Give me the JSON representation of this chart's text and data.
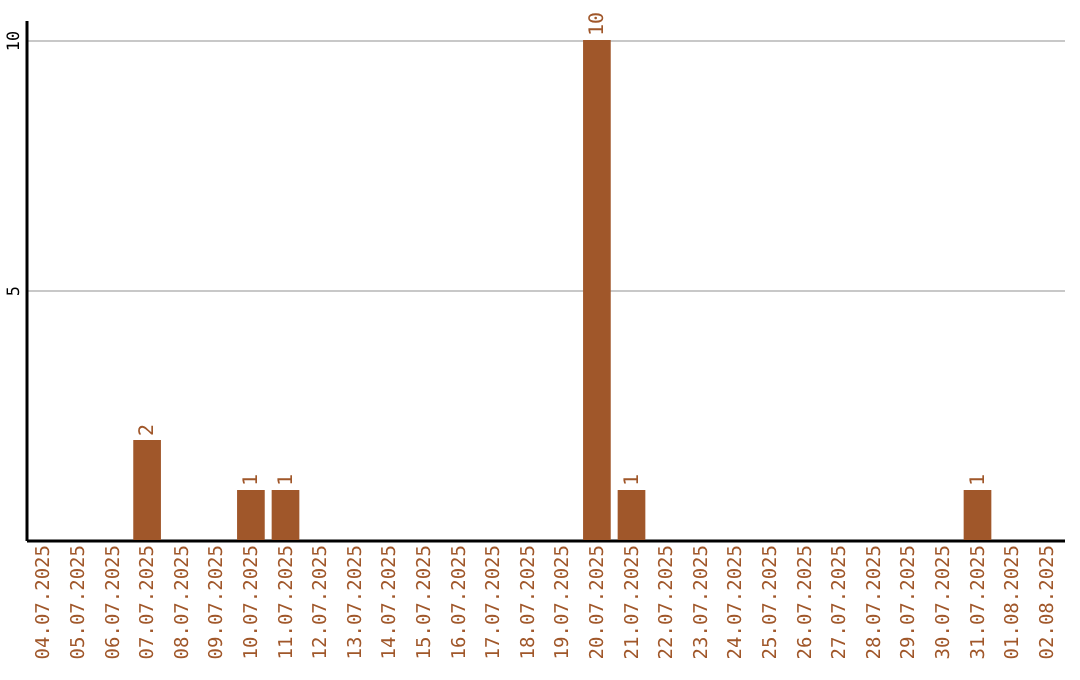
{
  "chart_data": {
    "type": "bar",
    "categories": [
      "04.07.2025",
      "05.07.2025",
      "06.07.2025",
      "07.07.2025",
      "08.07.2025",
      "09.07.2025",
      "10.07.2025",
      "11.07.2025",
      "12.07.2025",
      "13.07.2025",
      "14.07.2025",
      "15.07.2025",
      "16.07.2025",
      "17.07.2025",
      "18.07.2025",
      "19.07.2025",
      "20.07.2025",
      "21.07.2025",
      "22.07.2025",
      "23.07.2025",
      "24.07.2025",
      "25.07.2025",
      "26.07.2025",
      "27.07.2025",
      "28.07.2025",
      "29.07.2025",
      "30.07.2025",
      "31.07.2025",
      "01.08.2025",
      "02.08.2025"
    ],
    "values": [
      0,
      0,
      0,
      2,
      0,
      0,
      1,
      1,
      0,
      0,
      0,
      0,
      0,
      0,
      0,
      0,
      10,
      1,
      0,
      0,
      0,
      0,
      0,
      0,
      0,
      0,
      0,
      1,
      0,
      0
    ],
    "value_labels": [
      null,
      null,
      null,
      "2",
      null,
      null,
      "1",
      "1",
      null,
      null,
      null,
      null,
      null,
      null,
      null,
      null,
      "10",
      "1",
      null,
      null,
      null,
      null,
      null,
      null,
      null,
      null,
      null,
      "1",
      null,
      null
    ],
    "color": "#a0572a",
    "ylim": [
      0,
      10.4
    ],
    "yticks": [
      5,
      10
    ],
    "grid": "y"
  }
}
